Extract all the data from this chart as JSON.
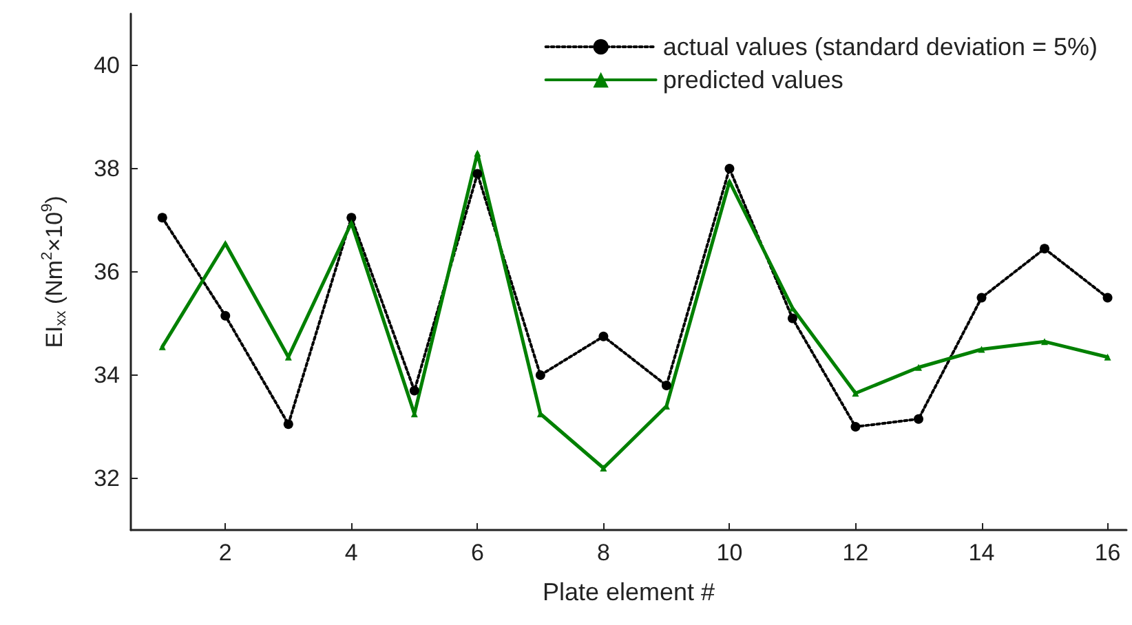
{
  "chart_data": {
    "type": "line",
    "xlabel": "Plate element #",
    "ylabel": "EI$_{xx}$ (Nm$^{2}$×10$^{9}$)",
    "x": [
      1,
      2,
      3,
      4,
      5,
      6,
      7,
      8,
      9,
      10,
      11,
      12,
      13,
      14,
      15,
      16
    ],
    "xlim": [
      0.5,
      16.3
    ],
    "xticks": [
      2,
      4,
      6,
      8,
      10,
      12,
      14,
      16
    ],
    "ylim": [
      31,
      41
    ],
    "yticks": [
      32,
      34,
      36,
      38,
      40
    ],
    "grid": false,
    "legend": "top right",
    "series": [
      {
        "name": "actual values (standard deviation = 5%)",
        "color": "#000000",
        "line_style": "dotted",
        "marker": "circle",
        "values": [
          37.05,
          35.15,
          33.05,
          37.05,
          33.7,
          37.9,
          34.0,
          34.75,
          33.8,
          38.0,
          35.1,
          33.0,
          33.15,
          35.5,
          36.45,
          35.5
        ]
      },
      {
        "name": "predicted values",
        "color": "#008000",
        "line_style": "solid",
        "marker": "triangle",
        "values": [
          34.55,
          36.55,
          34.35,
          36.95,
          33.25,
          38.3,
          33.25,
          32.2,
          33.4,
          37.75,
          35.3,
          33.65,
          34.15,
          34.5,
          34.65,
          34.35
        ]
      }
    ]
  }
}
